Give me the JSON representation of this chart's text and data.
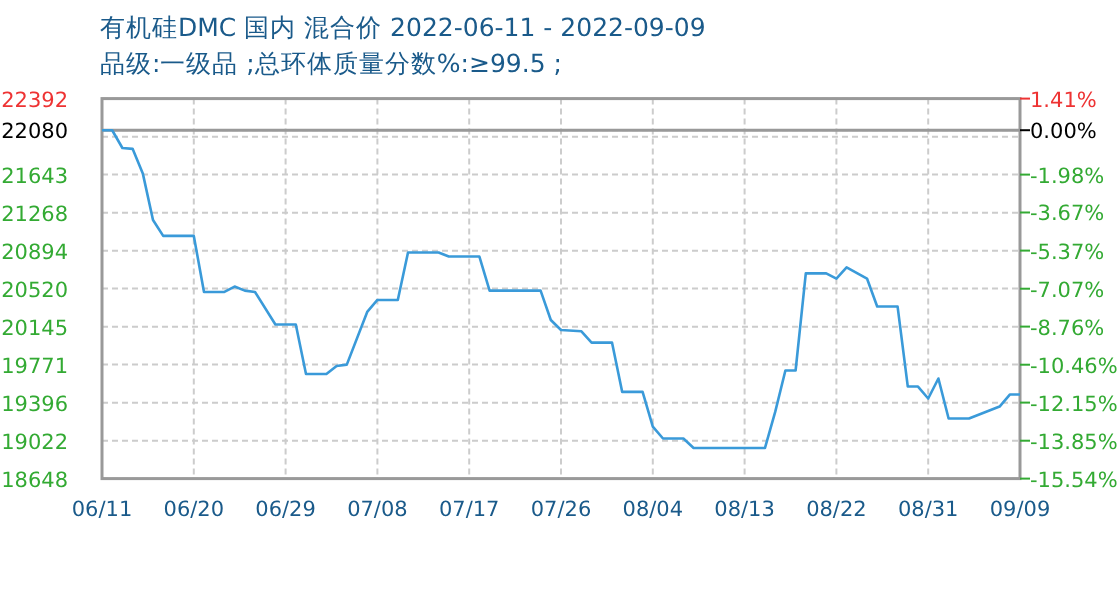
{
  "chart_data": {
    "type": "line",
    "title": "有机硅DMC 国内 混合价 2022-06-11 - 2022-09-09",
    "subtitle": "品级:一级品 ;总环体质量分数%:≥99.5 ;",
    "x": [
      "2022-06-11",
      "2022-06-12",
      "2022-06-13",
      "2022-06-14",
      "2022-06-15",
      "2022-06-16",
      "2022-06-17",
      "2022-06-20",
      "2022-06-21",
      "2022-06-23",
      "2022-06-24",
      "2022-06-25",
      "2022-06-26",
      "2022-06-28",
      "2022-06-30",
      "2022-07-01",
      "2022-07-03",
      "2022-07-04",
      "2022-07-05",
      "2022-07-07",
      "2022-07-08",
      "2022-07-10",
      "2022-07-11",
      "2022-07-14",
      "2022-07-15",
      "2022-07-18",
      "2022-07-19",
      "2022-07-24",
      "2022-07-25",
      "2022-07-26",
      "2022-07-28",
      "2022-07-29",
      "2022-07-31",
      "2022-08-01",
      "2022-08-03",
      "2022-08-04",
      "2022-08-05",
      "2022-08-07",
      "2022-08-08",
      "2022-08-15",
      "2022-08-16",
      "2022-08-17",
      "2022-08-18",
      "2022-08-19",
      "2022-08-21",
      "2022-08-22",
      "2022-08-23",
      "2022-08-25",
      "2022-08-26",
      "2022-08-28",
      "2022-08-29",
      "2022-08-30",
      "2022-08-31",
      "2022-09-01",
      "2022-09-02",
      "2022-09-04",
      "2022-09-07",
      "2022-09-08",
      "2022-09-09"
    ],
    "series": [
      {
        "color": "#3a9ad9",
        "values": [
          22080,
          22080,
          21905,
          21897,
          21655,
          21196,
          21039,
          21039,
          20487,
          20487,
          20540,
          20500,
          20487,
          20166,
          20166,
          19679,
          19679,
          19758,
          19771,
          20290,
          20408,
          20408,
          20875,
          20875,
          20836,
          20836,
          20500,
          20500,
          20211,
          20112,
          20099,
          19988,
          19988,
          19502,
          19502,
          19161,
          19043,
          19043,
          18950,
          18950,
          19305,
          19713,
          19713,
          20670,
          20670,
          20619,
          20729,
          20619,
          20343,
          20343,
          19555,
          19555,
          19437,
          19634,
          19240,
          19240,
          19358,
          19476,
          19476
        ]
      }
    ],
    "xlim": [
      "2022-06-11",
      "2022-09-09"
    ],
    "xticks": [
      {
        "value": "2022-06-11",
        "label": "06/11"
      },
      {
        "value": "2022-06-20",
        "label": "06/20"
      },
      {
        "value": "2022-06-29",
        "label": "06/29"
      },
      {
        "value": "2022-07-08",
        "label": "07/08"
      },
      {
        "value": "2022-07-17",
        "label": "07/17"
      },
      {
        "value": "2022-07-26",
        "label": "07/26"
      },
      {
        "value": "2022-08-04",
        "label": "08/04"
      },
      {
        "value": "2022-08-13",
        "label": "08/13"
      },
      {
        "value": "2022-08-22",
        "label": "08/22"
      },
      {
        "value": "2022-08-31",
        "label": "08/31"
      },
      {
        "value": "2022-09-09",
        "label": "09/09"
      }
    ],
    "ylim": [
      18648,
      22392
    ],
    "yticks": [
      18648,
      19022,
      19396,
      19771,
      20145,
      20520,
      20894,
      21268,
      21643,
      {
        "value": 22017,
        "label": null
      },
      22080,
      22392
    ],
    "y2lim": [
      -15.54,
      1.41
    ],
    "y2ticks": [
      {
        "value": 1.41,
        "label": "1.41%"
      },
      {
        "value": 0,
        "label": "0.00%"
      },
      {
        "value": -1.98,
        "label": "-1.98%"
      },
      {
        "value": -3.67,
        "label": "-3.67%"
      },
      {
        "value": -5.37,
        "label": "-5.37%"
      },
      {
        "value": -7.07,
        "label": "-7.07%"
      },
      {
        "value": -8.76,
        "label": "-8.76%"
      },
      {
        "value": -10.46,
        "label": "-10.46%"
      },
      {
        "value": -12.15,
        "label": "-12.15%"
      },
      {
        "value": -13.85,
        "label": "-13.85%"
      },
      {
        "value": -15.54,
        "label": "-15.54%"
      }
    ],
    "ref_lines": [
      {
        "axis": "y",
        "value": 22080,
        "color": "#999999",
        "line_style": "solid"
      }
    ],
    "grid": true
  }
}
